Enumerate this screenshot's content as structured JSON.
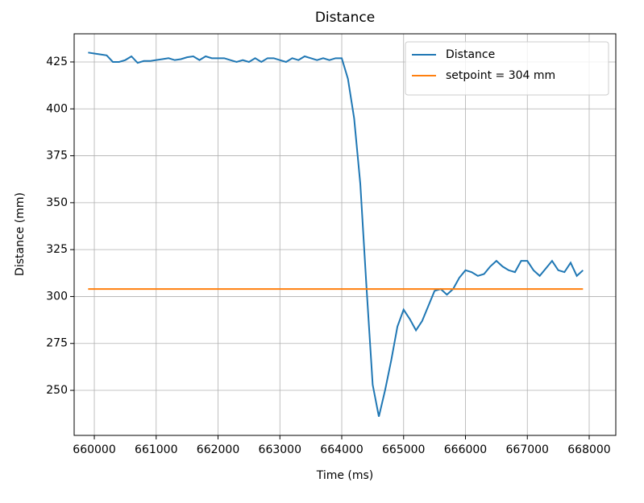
{
  "chart_data": {
    "type": "line",
    "title": "Distance",
    "x_label": "Time (ms)",
    "y_label": "Distance (mm)",
    "xlim": [
      659674,
      668430
    ],
    "ylim": [
      226,
      440
    ],
    "xticks": [
      660000,
      661000,
      662000,
      663000,
      664000,
      665000,
      666000,
      667000,
      668000
    ],
    "yticks": [
      250,
      275,
      300,
      325,
      350,
      375,
      400,
      425
    ],
    "grid": true,
    "legend": "upper right",
    "series": [
      {
        "name": "Distance",
        "color": "#1f77b4",
        "x": [
          659900,
          660000,
          660100,
          660200,
          660300,
          660400,
          660500,
          660600,
          660700,
          660800,
          660900,
          661000,
          661100,
          661200,
          661300,
          661400,
          661500,
          661600,
          661700,
          661800,
          661900,
          662000,
          662100,
          662200,
          662300,
          662400,
          662500,
          662600,
          662700,
          662800,
          662900,
          663000,
          663100,
          663200,
          663300,
          663400,
          663500,
          663600,
          663700,
          663800,
          663900,
          664000,
          664100,
          664200,
          664300,
          664400,
          664500,
          664600,
          664700,
          664800,
          664900,
          665000,
          665100,
          665200,
          665300,
          665400,
          665500,
          665600,
          665700,
          665800,
          665900,
          666000,
          666100,
          666200,
          666300,
          666400,
          666500,
          666600,
          666700,
          666800,
          666900,
          667000,
          667100,
          667200,
          667300,
          667400,
          667500,
          667600,
          667700,
          667800,
          667900
        ],
        "values": [
          430,
          429.5,
          429,
          428.5,
          425,
          425,
          426,
          428,
          424.5,
          425.5,
          425.5,
          426,
          426.5,
          427,
          426,
          426.5,
          427.5,
          428,
          426,
          428,
          427,
          427,
          427,
          426,
          425,
          426,
          425,
          427,
          425,
          427,
          427,
          426,
          425,
          427,
          426,
          428,
          427,
          426,
          427,
          426,
          427,
          427,
          416,
          395,
          360,
          305,
          253,
          236,
          250,
          266,
          284,
          293,
          288,
          282,
          287,
          295,
          303,
          304,
          301,
          304,
          310,
          314,
          313,
          311,
          312,
          316,
          319,
          316,
          314,
          313,
          319,
          319,
          314,
          311,
          315,
          319,
          314,
          313,
          318,
          311,
          314
        ]
      },
      {
        "name": "setpoint = 304 mm",
        "color": "#ff7f0e",
        "x": [
          659900,
          667900
        ],
        "values": [
          304,
          304
        ]
      }
    ]
  }
}
